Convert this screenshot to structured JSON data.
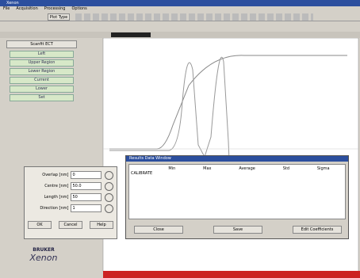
{
  "window": {
    "title": "Xenon"
  },
  "menu": [
    "File",
    "Acquisition",
    "Processing",
    "Options"
  ],
  "toolbar": {
    "mode": "Plot Type"
  },
  "left_panel": {
    "header": "Scanfit ECT",
    "buttons": [
      "Left",
      "Upper Region",
      "Lower Region",
      "Current",
      "Lower",
      "Set"
    ]
  },
  "params_dialog": {
    "fields": [
      {
        "label": "Overlap [nm]",
        "value": "0"
      },
      {
        "label": "Centre [nm]",
        "value": "50.0"
      },
      {
        "label": "Length [nm]",
        "value": "50"
      },
      {
        "label": "Direction [nm]",
        "value": "1"
      }
    ],
    "buttons": [
      "OK",
      "Cancel",
      "Help"
    ]
  },
  "result_dialog": {
    "title": "Results Data Window",
    "row_label": "CALIBRATE",
    "columns": [
      "Min",
      "Max",
      "Average",
      "Std",
      "Sigma"
    ],
    "buttons": [
      "Close",
      "Save",
      "Edit Coefficients"
    ]
  },
  "logo": {
    "brand": "BRUKER",
    "product": "Xenon"
  }
}
